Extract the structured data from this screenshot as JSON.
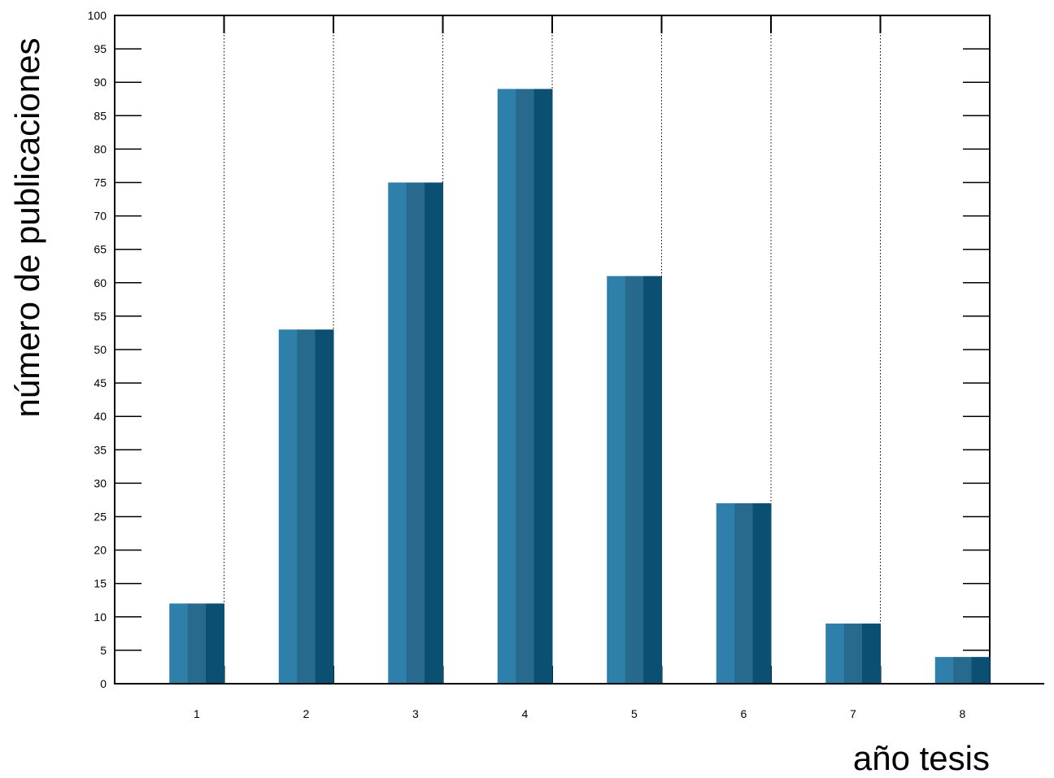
{
  "chart_data": {
    "type": "bar",
    "title": "",
    "xlabel": "año tesis",
    "ylabel": "número de publicaciones",
    "categories": [
      "1",
      "2",
      "3",
      "4",
      "5",
      "6",
      "7",
      "8"
    ],
    "values": [
      12,
      53,
      75,
      89,
      61,
      27,
      9,
      4
    ],
    "ylim": [
      0,
      100
    ],
    "yticks": [
      0,
      5,
      10,
      15,
      20,
      25,
      30,
      35,
      40,
      45,
      50,
      55,
      60,
      65,
      70,
      75,
      80,
      85,
      90,
      95,
      100
    ],
    "grid": "vertical dotted lines between categories",
    "legend": "none",
    "colors": {
      "bar_light": "#2e7faa",
      "bar_mid": "#276a8e",
      "bar_dark": "#0b4f73",
      "axis": "#000000"
    }
  }
}
